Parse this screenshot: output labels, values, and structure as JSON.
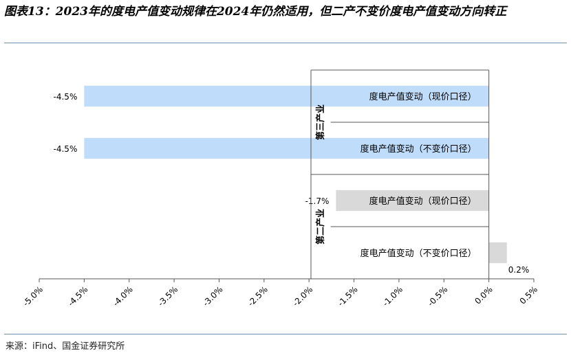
{
  "title": "图表13：2023年的度电产值变动规律在2024年仍然适用，但二产不变价度电产值变动方向转正",
  "source": "来源：iFind、国金证券研究所",
  "colors": {
    "blue": "#bfdcfa",
    "gray": "#d9d9d9",
    "axis": "#555555",
    "rule": "#6f8fb3"
  },
  "chart_data": {
    "type": "bar",
    "orientation": "horizontal",
    "categories": [
      "度电产值变动（现价口径）",
      "度电产值变动（不变价口径）",
      "度电产值变动（现价口径）",
      "度电产值变动（不变价口径）"
    ],
    "groups": [
      {
        "label": "第三产业",
        "rows": [
          0,
          1
        ]
      },
      {
        "label": "第二产业",
        "rows": [
          2,
          3
        ]
      }
    ],
    "values": [
      -4.5,
      -4.5,
      -1.7,
      0.2
    ],
    "value_labels": [
      "-4.5%",
      "-4.5%",
      "-1.7%",
      "0.2%"
    ],
    "bar_colors": [
      "#bfdcfa",
      "#bfdcfa",
      "#d9d9d9",
      "#d9d9d9"
    ],
    "xlim": [
      -5.0,
      0.5
    ],
    "xticks": [
      -5.0,
      -4.5,
      -4.0,
      -3.5,
      -3.0,
      -2.5,
      -2.0,
      -1.5,
      -1.0,
      -0.5,
      0.0,
      0.5
    ],
    "xtick_labels": [
      "-5.0%",
      "-4.5%",
      "-4.0%",
      "-3.5%",
      "-3.0%",
      "-2.5%",
      "-2.0%",
      "-1.5%",
      "-1.0%",
      "-0.5%",
      "0.0%",
      "0.5%"
    ],
    "grid": false
  }
}
